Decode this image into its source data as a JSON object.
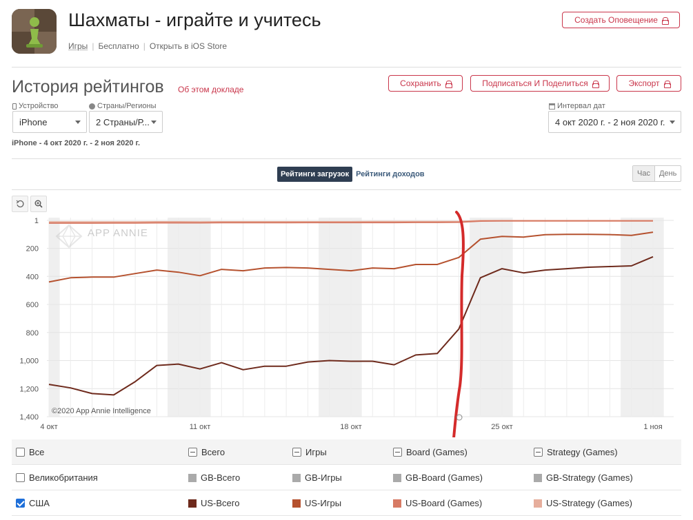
{
  "app": {
    "title": "Шахматы - играйте и учитесь",
    "category": "Игры",
    "price": "Бесплатно",
    "store_link": "Открыть в iOS Store",
    "alert_button": "Создать Оповещение"
  },
  "report": {
    "title": "История рейтингов",
    "about_link": "Об этом докладе",
    "save_button": "Сохранить",
    "share_button": "Подписаться И Поделиться",
    "export_button": "Экспорт"
  },
  "filters": {
    "device_label": "Устройство",
    "device_value": "iPhone",
    "region_label": "Страны/Регионы",
    "region_value": "2 Страны/Р...",
    "date_label": "Интервал дат",
    "date_value": "4 окт 2020 г. - 2 ноя 2020 г.",
    "summary": "iPhone - 4 окт 2020 г. - 2 ноя 2020 г."
  },
  "tabs": {
    "downloads": "Рейтинги загрузок",
    "revenue": "Рейтинги доходов"
  },
  "granularity": {
    "hour": "Час",
    "day": "День"
  },
  "chart_data": {
    "type": "line",
    "watermark": "APP ANNIE",
    "credit": "©2020 App Annie Intelligence",
    "y_reversed": true,
    "ylim": [
      1,
      1400
    ],
    "y_ticks": [
      "1",
      "200",
      "400",
      "600",
      "800",
      "1,000",
      "1,200",
      "1,400"
    ],
    "y_tick_values": [
      1,
      200,
      400,
      600,
      800,
      1000,
      1200,
      1400
    ],
    "x_tick_labels": [
      "4 окт",
      "11 окт",
      "18 окт",
      "25 окт",
      "1 ноя"
    ],
    "x_tick_days": [
      0,
      7,
      14,
      21,
      28
    ],
    "days": 29,
    "weekend_days": [
      0,
      6,
      7,
      13,
      14,
      20,
      21,
      27,
      28
    ],
    "series": [
      {
        "name": "US-Всего",
        "color": "#6e2a1c",
        "values": [
          1170,
          1195,
          1235,
          1245,
          1150,
          1035,
          1025,
          1060,
          1015,
          1065,
          1040,
          1040,
          1010,
          1000,
          1005,
          1005,
          1030,
          960,
          950,
          775,
          410,
          345,
          375,
          355,
          345,
          335,
          330,
          325,
          260
        ]
      },
      {
        "name": "US-Игры",
        "color": "#b5512e",
        "values": [
          440,
          410,
          405,
          405,
          380,
          355,
          370,
          395,
          350,
          360,
          340,
          337,
          340,
          350,
          360,
          340,
          345,
          315,
          315,
          265,
          135,
          115,
          120,
          103,
          100,
          100,
          102,
          108,
          85
        ]
      },
      {
        "name": "US-Board (Games)",
        "color": "#d77a64",
        "values": [
          20,
          20,
          20,
          19,
          19,
          18,
          18,
          18,
          17,
          17,
          17,
          17,
          16,
          16,
          16,
          16,
          16,
          15,
          15,
          14,
          6,
          5,
          5,
          5,
          5,
          5,
          5,
          5,
          5
        ]
      },
      {
        "name": "US-Strategy (Games)",
        "color": "#e6ae9c",
        "values": [
          12,
          12,
          12,
          12,
          12,
          11,
          11,
          12,
          11,
          11,
          11,
          11,
          11,
          11,
          11,
          10,
          10,
          10,
          10,
          9,
          3,
          3,
          3,
          3,
          3,
          3,
          3,
          3,
          3
        ]
      }
    ]
  },
  "annotation": {
    "color": "#d42b2b"
  },
  "legend": {
    "header": {
      "all": "Все",
      "total": "Всего",
      "games": "Игры",
      "board": "Board (Games)",
      "strategy": "Strategy (Games)"
    },
    "rows": [
      {
        "country": "Великобритания",
        "checked": false,
        "items": [
          "GB-Всего",
          "GB-Игры",
          "GB-Board (Games)",
          "GB-Strategy (Games)"
        ],
        "colors": [
          "#aaaaaa",
          "#aaaaaa",
          "#aaaaaa",
          "#aaaaaa"
        ]
      },
      {
        "country": "США",
        "checked": true,
        "items": [
          "US-Всего",
          "US-Игры",
          "US-Board (Games)",
          "US-Strategy (Games)"
        ],
        "colors": [
          "#6e2a1c",
          "#b5512e",
          "#d77a64",
          "#e6ae9c"
        ]
      }
    ]
  }
}
